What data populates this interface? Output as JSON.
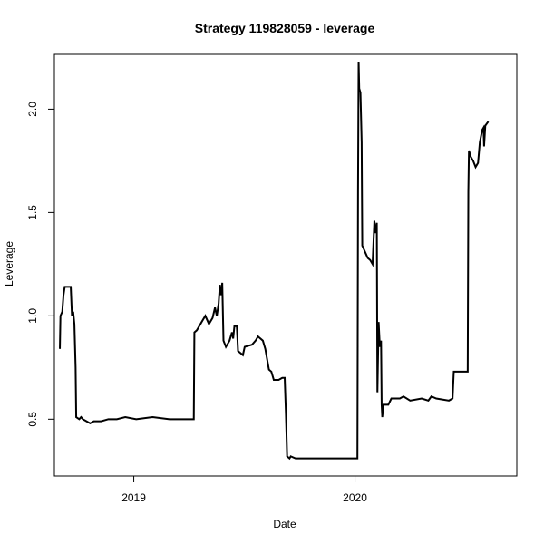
{
  "chart_data": {
    "type": "line",
    "title": "Strategy 119828059 - leverage",
    "xlabel": "Date",
    "ylabel": "Leverage",
    "x_ticks": [
      {
        "label": "2019",
        "value": "2019-01-01"
      },
      {
        "label": "2020",
        "value": "2020-01-01"
      }
    ],
    "y_ticks": [
      {
        "label": "0.5",
        "value": 0.5
      },
      {
        "label": "1.0",
        "value": 1.0
      },
      {
        "label": "1.5",
        "value": 1.5
      },
      {
        "label": "2.0",
        "value": 2.0
      }
    ],
    "xlim": [
      "2018-08-23",
      "2020-09-24"
    ],
    "ylim": [
      0.225,
      2.265
    ],
    "grid": false,
    "line_color": "#000000",
    "series": [
      {
        "points": [
          [
            "2018-09-01",
            0.84
          ],
          [
            "2018-09-02",
            1.0
          ],
          [
            "2018-09-05",
            1.02
          ],
          [
            "2018-09-07",
            1.1
          ],
          [
            "2018-09-09",
            1.14
          ],
          [
            "2018-09-19",
            1.14
          ],
          [
            "2018-09-21",
            1.0
          ],
          [
            "2018-09-23",
            1.02
          ],
          [
            "2018-09-25",
            0.96
          ],
          [
            "2018-09-27",
            0.75
          ],
          [
            "2018-09-28",
            0.51
          ],
          [
            "2018-10-03",
            0.5
          ],
          [
            "2018-10-06",
            0.51
          ],
          [
            "2018-10-09",
            0.5
          ],
          [
            "2018-10-15",
            0.49
          ],
          [
            "2018-10-21",
            0.48
          ],
          [
            "2018-10-27",
            0.49
          ],
          [
            "2018-11-08",
            0.49
          ],
          [
            "2018-11-20",
            0.5
          ],
          [
            "2018-12-04",
            0.5
          ],
          [
            "2018-12-18",
            0.51
          ],
          [
            "2019-01-05",
            0.5
          ],
          [
            "2019-02-01",
            0.51
          ],
          [
            "2019-03-01",
            0.5
          ],
          [
            "2019-04-10",
            0.5
          ],
          [
            "2019-04-11",
            0.92
          ],
          [
            "2019-04-15",
            0.93
          ],
          [
            "2019-04-23",
            0.97
          ],
          [
            "2019-04-29",
            1.0
          ],
          [
            "2019-05-05",
            0.96
          ],
          [
            "2019-05-11",
            0.99
          ],
          [
            "2019-05-15",
            1.04
          ],
          [
            "2019-05-18",
            1.0
          ],
          [
            "2019-05-21",
            1.06
          ],
          [
            "2019-05-23",
            1.15
          ],
          [
            "2019-05-25",
            1.1
          ],
          [
            "2019-05-27",
            1.16
          ],
          [
            "2019-05-29",
            0.88
          ],
          [
            "2019-06-02",
            0.85
          ],
          [
            "2019-06-08",
            0.88
          ],
          [
            "2019-06-12",
            0.92
          ],
          [
            "2019-06-14",
            0.89
          ],
          [
            "2019-06-16",
            0.95
          ],
          [
            "2019-06-20",
            0.95
          ],
          [
            "2019-06-22",
            0.83
          ],
          [
            "2019-06-26",
            0.82
          ],
          [
            "2019-06-30",
            0.81
          ],
          [
            "2019-07-03",
            0.85
          ],
          [
            "2019-07-15",
            0.86
          ],
          [
            "2019-07-21",
            0.88
          ],
          [
            "2019-07-25",
            0.9
          ],
          [
            "2019-08-02",
            0.88
          ],
          [
            "2019-08-06",
            0.84
          ],
          [
            "2019-08-12",
            0.74
          ],
          [
            "2019-08-16",
            0.73
          ],
          [
            "2019-08-20",
            0.69
          ],
          [
            "2019-08-28",
            0.69
          ],
          [
            "2019-09-03",
            0.7
          ],
          [
            "2019-09-07",
            0.7
          ],
          [
            "2019-09-09",
            0.53
          ],
          [
            "2019-09-11",
            0.32
          ],
          [
            "2019-09-15",
            0.31
          ],
          [
            "2019-09-17",
            0.32
          ],
          [
            "2019-09-25",
            0.31
          ],
          [
            "2019-10-15",
            0.31
          ],
          [
            "2019-12-25",
            0.31
          ],
          [
            "2020-01-05",
            0.31
          ],
          [
            "2020-01-06",
            1.6
          ],
          [
            "2020-01-07",
            2.23
          ],
          [
            "2020-01-08",
            2.1
          ],
          [
            "2020-01-10",
            2.08
          ],
          [
            "2020-01-12",
            1.84
          ],
          [
            "2020-01-13",
            1.34
          ],
          [
            "2020-01-16",
            1.32
          ],
          [
            "2020-01-19",
            1.3
          ],
          [
            "2020-01-22",
            1.28
          ],
          [
            "2020-01-26",
            1.27
          ],
          [
            "2020-01-30",
            1.25
          ],
          [
            "2020-02-02",
            1.46
          ],
          [
            "2020-02-04",
            1.4
          ],
          [
            "2020-02-06",
            1.45
          ],
          [
            "2020-02-07",
            0.63
          ],
          [
            "2020-02-09",
            0.97
          ],
          [
            "2020-02-11",
            0.85
          ],
          [
            "2020-02-13",
            0.88
          ],
          [
            "2020-02-14",
            0.57
          ],
          [
            "2020-02-15",
            0.51
          ],
          [
            "2020-02-17",
            0.57
          ],
          [
            "2020-02-25",
            0.57
          ],
          [
            "2020-03-01",
            0.6
          ],
          [
            "2020-03-15",
            0.6
          ],
          [
            "2020-03-21",
            0.61
          ],
          [
            "2020-04-01",
            0.59
          ],
          [
            "2020-04-20",
            0.6
          ],
          [
            "2020-05-01",
            0.59
          ],
          [
            "2020-05-06",
            0.61
          ],
          [
            "2020-05-14",
            0.6
          ],
          [
            "2020-06-04",
            0.59
          ],
          [
            "2020-06-10",
            0.6
          ],
          [
            "2020-06-12",
            0.73
          ],
          [
            "2020-06-25",
            0.73
          ],
          [
            "2020-07-05",
            0.73
          ],
          [
            "2020-07-06",
            1.6
          ],
          [
            "2020-07-07",
            1.8
          ],
          [
            "2020-07-10",
            1.77
          ],
          [
            "2020-07-14",
            1.75
          ],
          [
            "2020-07-18",
            1.72
          ],
          [
            "2020-07-22",
            1.74
          ],
          [
            "2020-07-25",
            1.84
          ],
          [
            "2020-07-29",
            1.9
          ],
          [
            "2020-07-31",
            1.91
          ],
          [
            "2020-08-01",
            1.82
          ],
          [
            "2020-08-03",
            1.92
          ],
          [
            "2020-08-08",
            1.94
          ]
        ]
      }
    ]
  }
}
